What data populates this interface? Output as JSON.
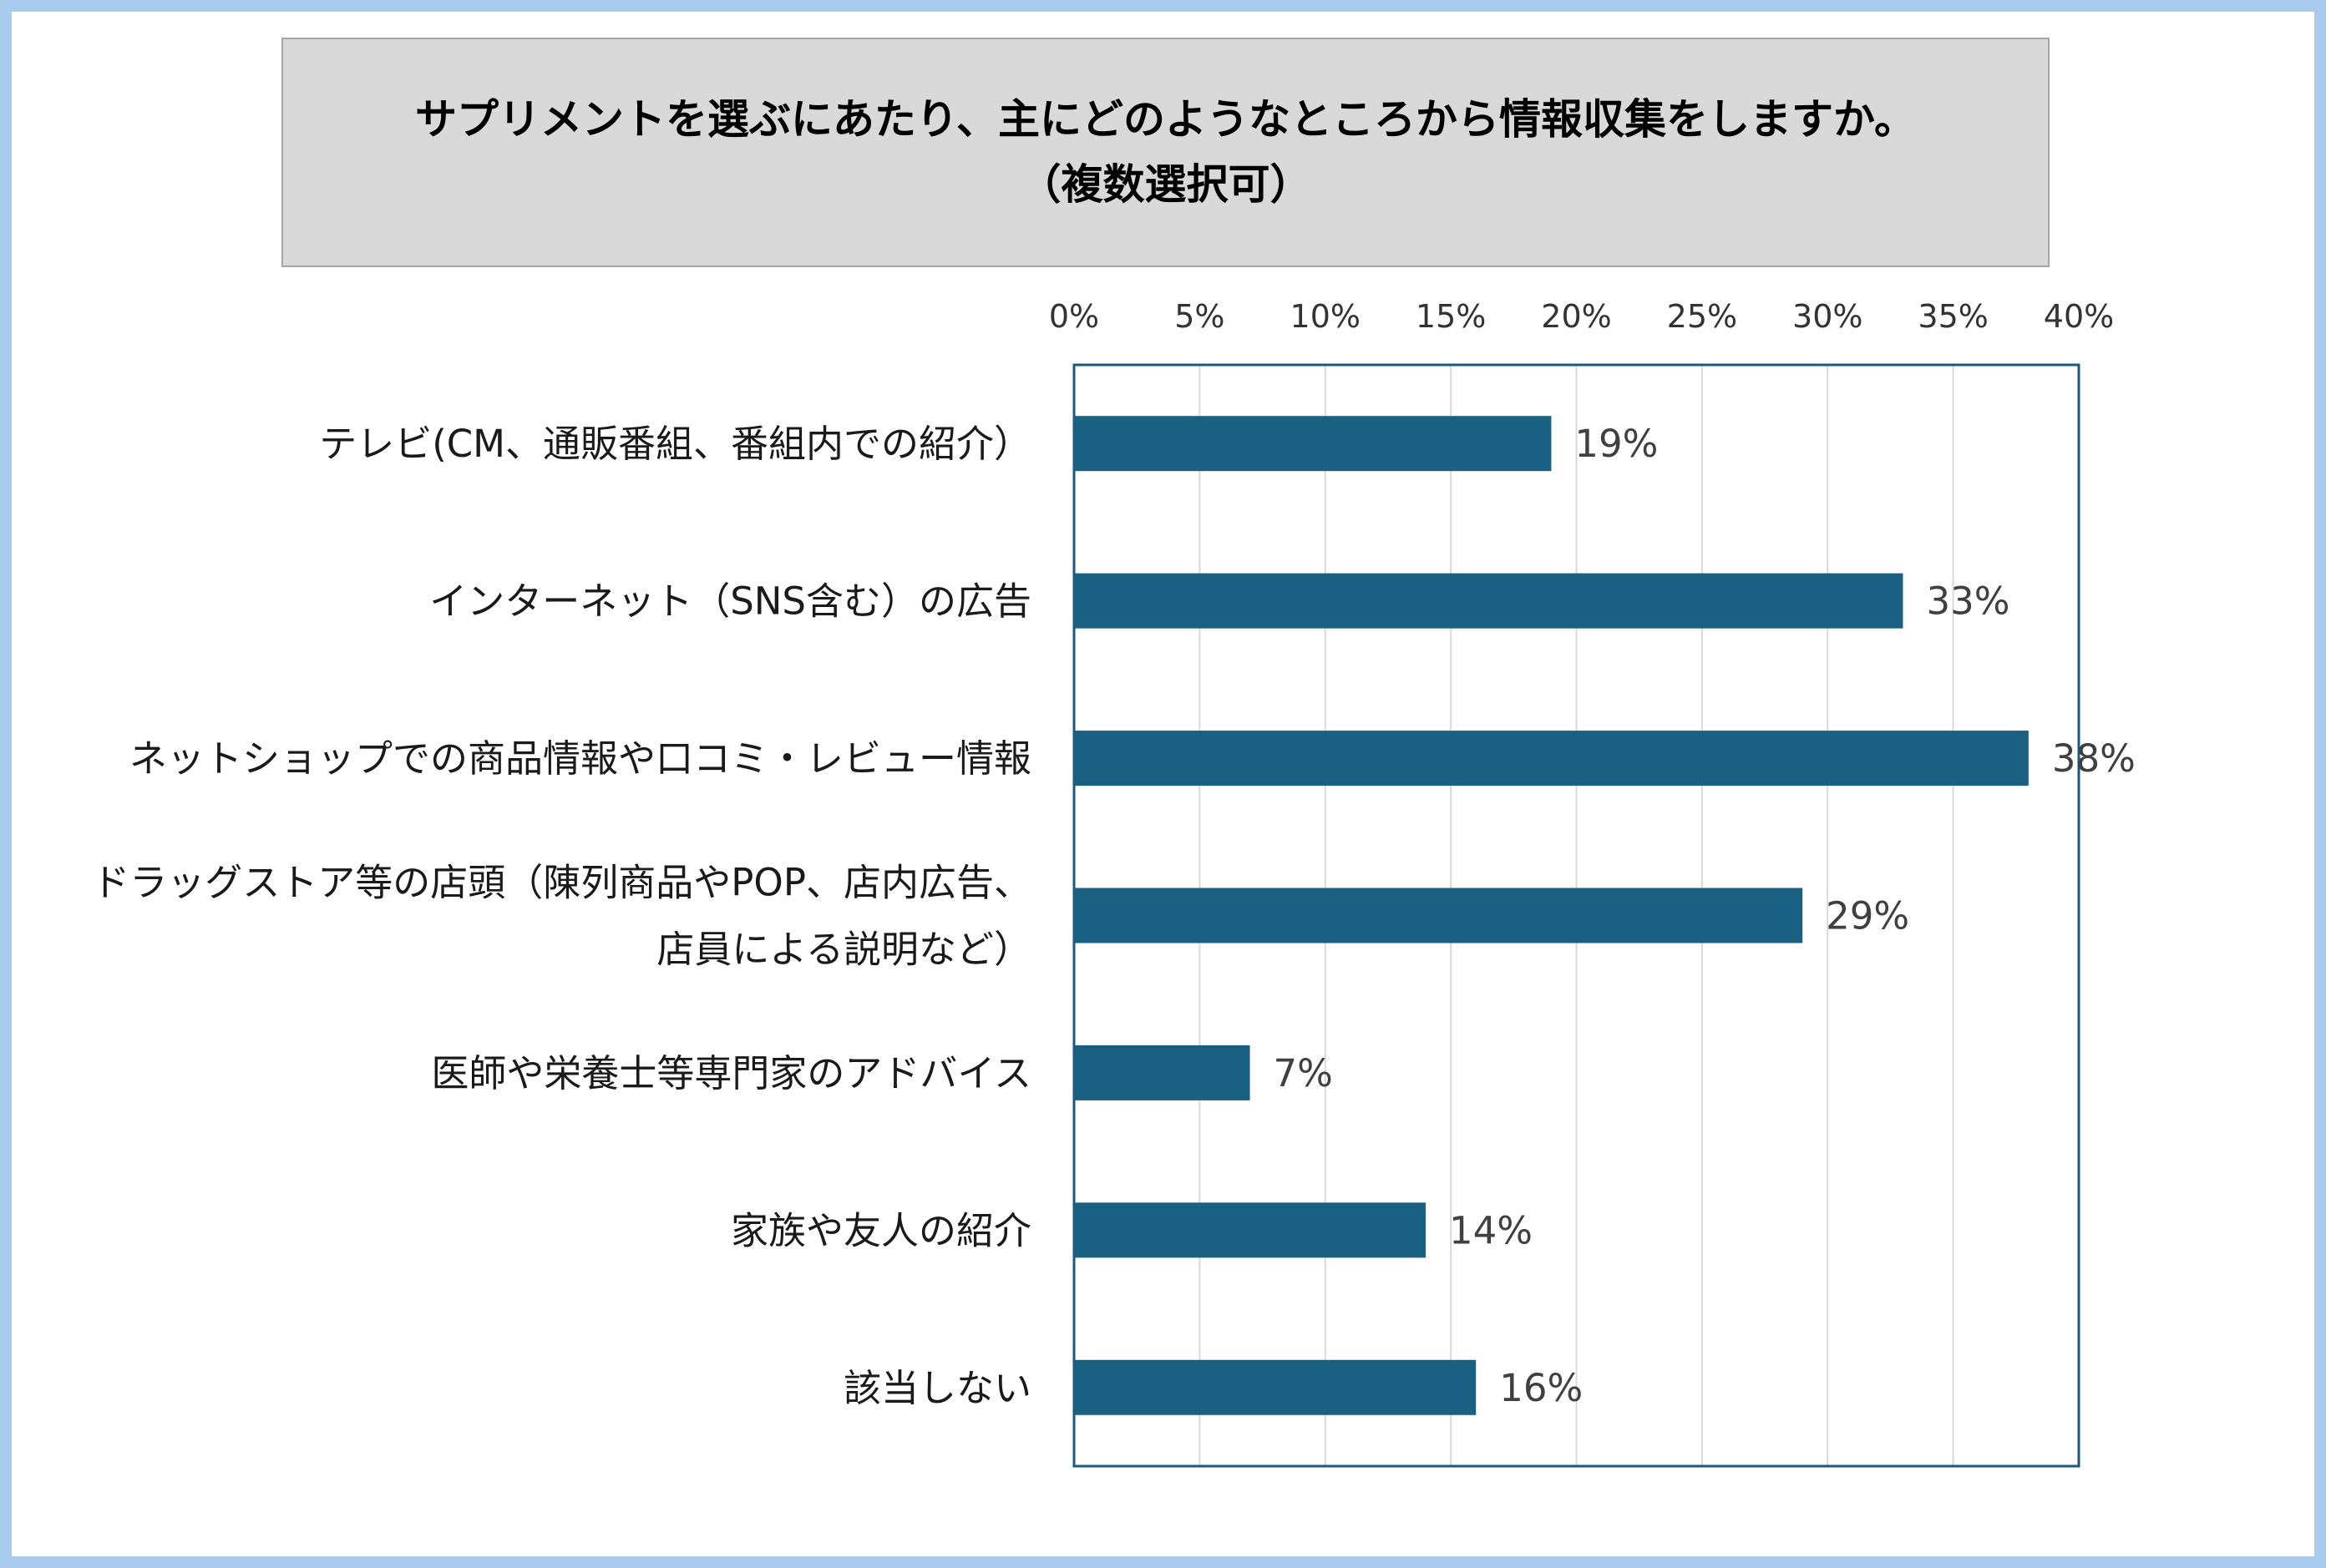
{
  "chart_data": {
    "type": "bar",
    "orientation": "horizontal",
    "title": "サプリメントを選ぶにあたり、主にどのようなところから情報収集をしますか。",
    "subtitle": "（複数選択可）",
    "categories": [
      [
        "テレビ(CM、通販番組、番組内での紹介）"
      ],
      [
        "インターネット（SNS含む）の広告"
      ],
      [
        "ネットショップでの商品情報や口コミ・レビュー情報"
      ],
      [
        "ドラッグストア等の店頭（陳列商品やPOP、店内広告、",
        "店員による説明など）"
      ],
      [
        "医師や栄養士等専門家のアドバイス"
      ],
      [
        "家族や友人の紹介"
      ],
      [
        "該当しない"
      ]
    ],
    "values": [
      19,
      33,
      38,
      29,
      7,
      14,
      16
    ],
    "data_labels": [
      "19%",
      "33%",
      "38%",
      "29%",
      "7%",
      "14%",
      "16%"
    ],
    "xlim": [
      0,
      40
    ],
    "xticks": [
      "0%",
      "5%",
      "10%",
      "15%",
      "20%",
      "25%",
      "30%",
      "35%",
      "40%"
    ],
    "xaxis_position": "top",
    "grid": true,
    "bar_color": "#1a6082",
    "axis_border_color": "#1a5a7c"
  }
}
